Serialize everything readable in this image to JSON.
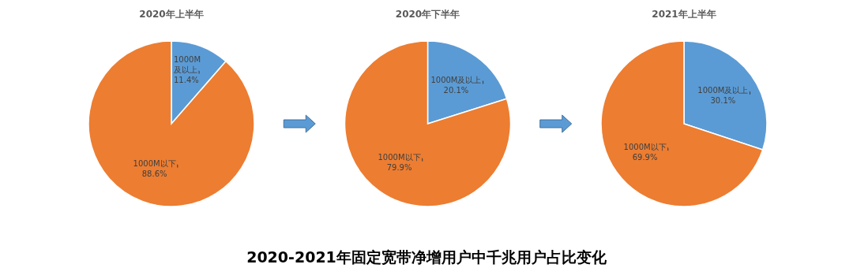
{
  "chart_data": [
    {
      "type": "pie",
      "title": "2020年上半年",
      "categories": [
        "1000M及以上",
        "1000M以下"
      ],
      "values": [
        11.4,
        88.6
      ],
      "colors": [
        "#5b9bd5",
        "#ed7d31"
      ],
      "value_labels": [
        "11.4%",
        "88.6%"
      ]
    },
    {
      "type": "pie",
      "title": "2020年下半年",
      "categories": [
        "1000M及以上",
        "1000M以下"
      ],
      "values": [
        20.1,
        79.9
      ],
      "colors": [
        "#5b9bd5",
        "#ed7d31"
      ],
      "value_labels": [
        "20.1%",
        "79.9%"
      ],
      "annotations": [
        "2020-2021年固定宽带净增用户中千兆用户占比变化"
      ]
    },
    {
      "type": "pie",
      "title": "2021年上半年",
      "categories": [
        "1000M及以上",
        "1000M以下"
      ],
      "values": [
        30.1,
        69.9
      ],
      "colors": [
        "#5b9bd5",
        "#ed7d31"
      ],
      "value_labels": [
        "30.1%",
        "69.9%"
      ]
    }
  ]
}
